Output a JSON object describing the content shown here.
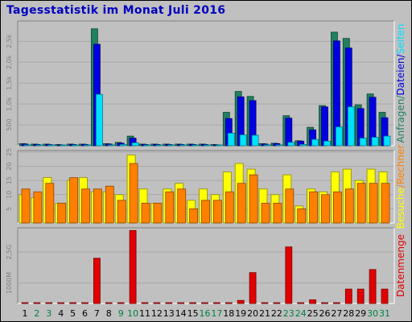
{
  "title": "Tagesstatistik im Monat Juli 2016",
  "colors": {
    "background": "#c0c0c0",
    "title": "#0000c0",
    "anfragen": "#208060",
    "dateien": "#0000e0",
    "seiten": "#00e0ff",
    "besuche": "#ffff00",
    "rechner": "#ff8000",
    "datenmenge": "#e00000",
    "weekday": "#000000",
    "weekend": "#008040"
  },
  "chart_data": [
    {
      "type": "bar",
      "right_label_parts": [
        {
          "text": "Anfragen",
          "color": "#208060"
        },
        {
          "text": "/",
          "color": "#208060"
        },
        {
          "text": "Dateien",
          "color": "#0000e0"
        },
        {
          "text": "/",
          "color": "#0000e0"
        },
        {
          "text": "Seiten",
          "color": "#00e0ff"
        }
      ],
      "y_ticks": [
        "500",
        "1,0k",
        "1,5k",
        "2,0k",
        "2,5k"
      ],
      "ylim": [
        0,
        2950
      ],
      "series": [
        {
          "name": "Anfragen",
          "color": "#208060",
          "values": [
            50,
            40,
            40,
            30,
            40,
            40,
            2800,
            50,
            80,
            230,
            40,
            40,
            40,
            40,
            40,
            40,
            30,
            800,
            1300,
            1180,
            50,
            60,
            720,
            120,
            440,
            960,
            2720,
            2570,
            980,
            1240,
            800
          ]
        },
        {
          "name": "Dateien",
          "color": "#0000e0",
          "values": [
            40,
            30,
            30,
            20,
            30,
            30,
            2430,
            40,
            60,
            180,
            30,
            30,
            30,
            30,
            30,
            30,
            20,
            650,
            1170,
            1080,
            40,
            50,
            660,
            110,
            380,
            930,
            2510,
            2340,
            890,
            1160,
            670
          ]
        },
        {
          "name": "Seiten",
          "color": "#00e0ff",
          "values": [
            20,
            15,
            20,
            10,
            15,
            15,
            1230,
            20,
            30,
            70,
            15,
            15,
            20,
            20,
            15,
            15,
            10,
            300,
            260,
            250,
            20,
            20,
            80,
            30,
            150,
            110,
            450,
            930,
            180,
            200,
            230
          ]
        }
      ]
    },
    {
      "type": "bar",
      "right_label_parts": [
        {
          "text": "Besuche",
          "color": "#ffff00"
        },
        {
          "text": "/",
          "color": "#ff8000"
        },
        {
          "text": "Rechner",
          "color": "#ff8000"
        }
      ],
      "y_ticks": [
        "5",
        "10",
        "15",
        "20",
        "25"
      ],
      "ylim": [
        0,
        25
      ],
      "series": [
        {
          "name": "Besuche",
          "color": "#ffff00",
          "values": [
            10,
            9,
            16,
            7,
            15,
            16,
            11,
            11,
            10,
            24,
            12,
            7,
            12,
            14,
            8,
            12,
            10,
            18,
            21,
            19,
            12,
            10,
            17,
            6,
            12,
            11,
            18,
            19,
            15,
            19,
            18
          ]
        },
        {
          "name": "Rechner",
          "color": "#ff8000",
          "values": [
            12,
            11,
            14,
            7,
            16,
            12,
            12,
            13,
            8,
            21,
            7,
            7,
            11,
            12,
            5,
            8,
            8,
            11,
            14,
            17,
            7,
            7,
            12,
            5,
            11,
            10,
            11,
            12,
            14,
            14,
            14
          ]
        }
      ]
    },
    {
      "type": "bar",
      "right_label_parts": [
        {
          "text": "Datenmenge",
          "color": "#e00000"
        }
      ],
      "y_ticks": [
        "1000M",
        "2,5G"
      ],
      "ylim": [
        0,
        3.6
      ],
      "series": [
        {
          "name": "Datenmenge",
          "color": "#e00000",
          "values": [
            0.02,
            0.02,
            0.02,
            0.02,
            0.02,
            0.02,
            2.2,
            0.02,
            0.02,
            3.55,
            0.02,
            0.02,
            0.02,
            0.02,
            0.02,
            0.02,
            0.02,
            0.02,
            0.15,
            1.5,
            0.02,
            0.02,
            2.75,
            0.02,
            0.18,
            0.02,
            0.02,
            0.7,
            0.7,
            1.65,
            0.7
          ]
        }
      ]
    }
  ],
  "x_days": [
    "1",
    "2",
    "3",
    "4",
    "5",
    "6",
    "7",
    "8",
    "9",
    "10",
    "11",
    "12",
    "13",
    "14",
    "15",
    "16",
    "17",
    "18",
    "19",
    "20",
    "21",
    "22",
    "23",
    "24",
    "25",
    "26",
    "27",
    "28",
    "29",
    "30",
    "31"
  ],
  "weekend_days": [
    "2",
    "3",
    "9",
    "10",
    "16",
    "17",
    "23",
    "24",
    "30",
    "31"
  ]
}
